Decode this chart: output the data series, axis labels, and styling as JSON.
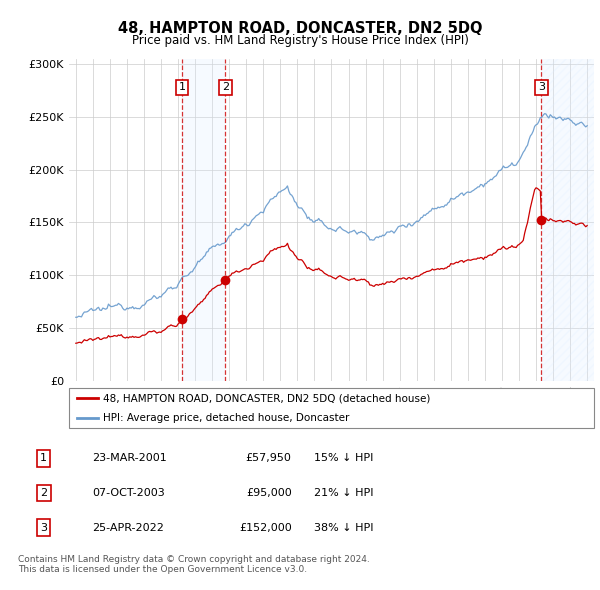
{
  "title": "48, HAMPTON ROAD, DONCASTER, DN2 5DQ",
  "subtitle": "Price paid vs. HM Land Registry's House Price Index (HPI)",
  "legend_line1": "48, HAMPTON ROAD, DONCASTER, DN2 5DQ (detached house)",
  "legend_line2": "HPI: Average price, detached house, Doncaster",
  "transactions": [
    {
      "num": 1,
      "date": "23-MAR-2001",
      "price": 57950,
      "year": 2001.22,
      "hpi_pct": "15% ↓ HPI"
    },
    {
      "num": 2,
      "date": "07-OCT-2003",
      "price": 95000,
      "year": 2003.77,
      "hpi_pct": "21% ↓ HPI"
    },
    {
      "num": 3,
      "date": "25-APR-2022",
      "price": 152000,
      "year": 2022.31,
      "hpi_pct": "38% ↓ HPI"
    }
  ],
  "red_color": "#cc0000",
  "blue_color": "#6699cc",
  "shade_color": "#ddeeff",
  "footer": "Contains HM Land Registry data © Crown copyright and database right 2024.\nThis data is licensed under the Open Government Licence v3.0.",
  "ylim": [
    0,
    305000
  ],
  "xlim": [
    1994.6,
    2025.4
  ],
  "yticks": [
    0,
    50000,
    100000,
    150000,
    200000,
    250000,
    300000
  ],
  "ytick_labels": [
    "£0",
    "£50K",
    "£100K",
    "£150K",
    "£200K",
    "£250K",
    "£300K"
  ],
  "xticks": [
    1995,
    1996,
    1997,
    1998,
    1999,
    2000,
    2001,
    2002,
    2003,
    2004,
    2005,
    2006,
    2007,
    2008,
    2009,
    2010,
    2011,
    2012,
    2013,
    2014,
    2015,
    2016,
    2017,
    2018,
    2019,
    2020,
    2021,
    2022,
    2023,
    2024,
    2025
  ]
}
